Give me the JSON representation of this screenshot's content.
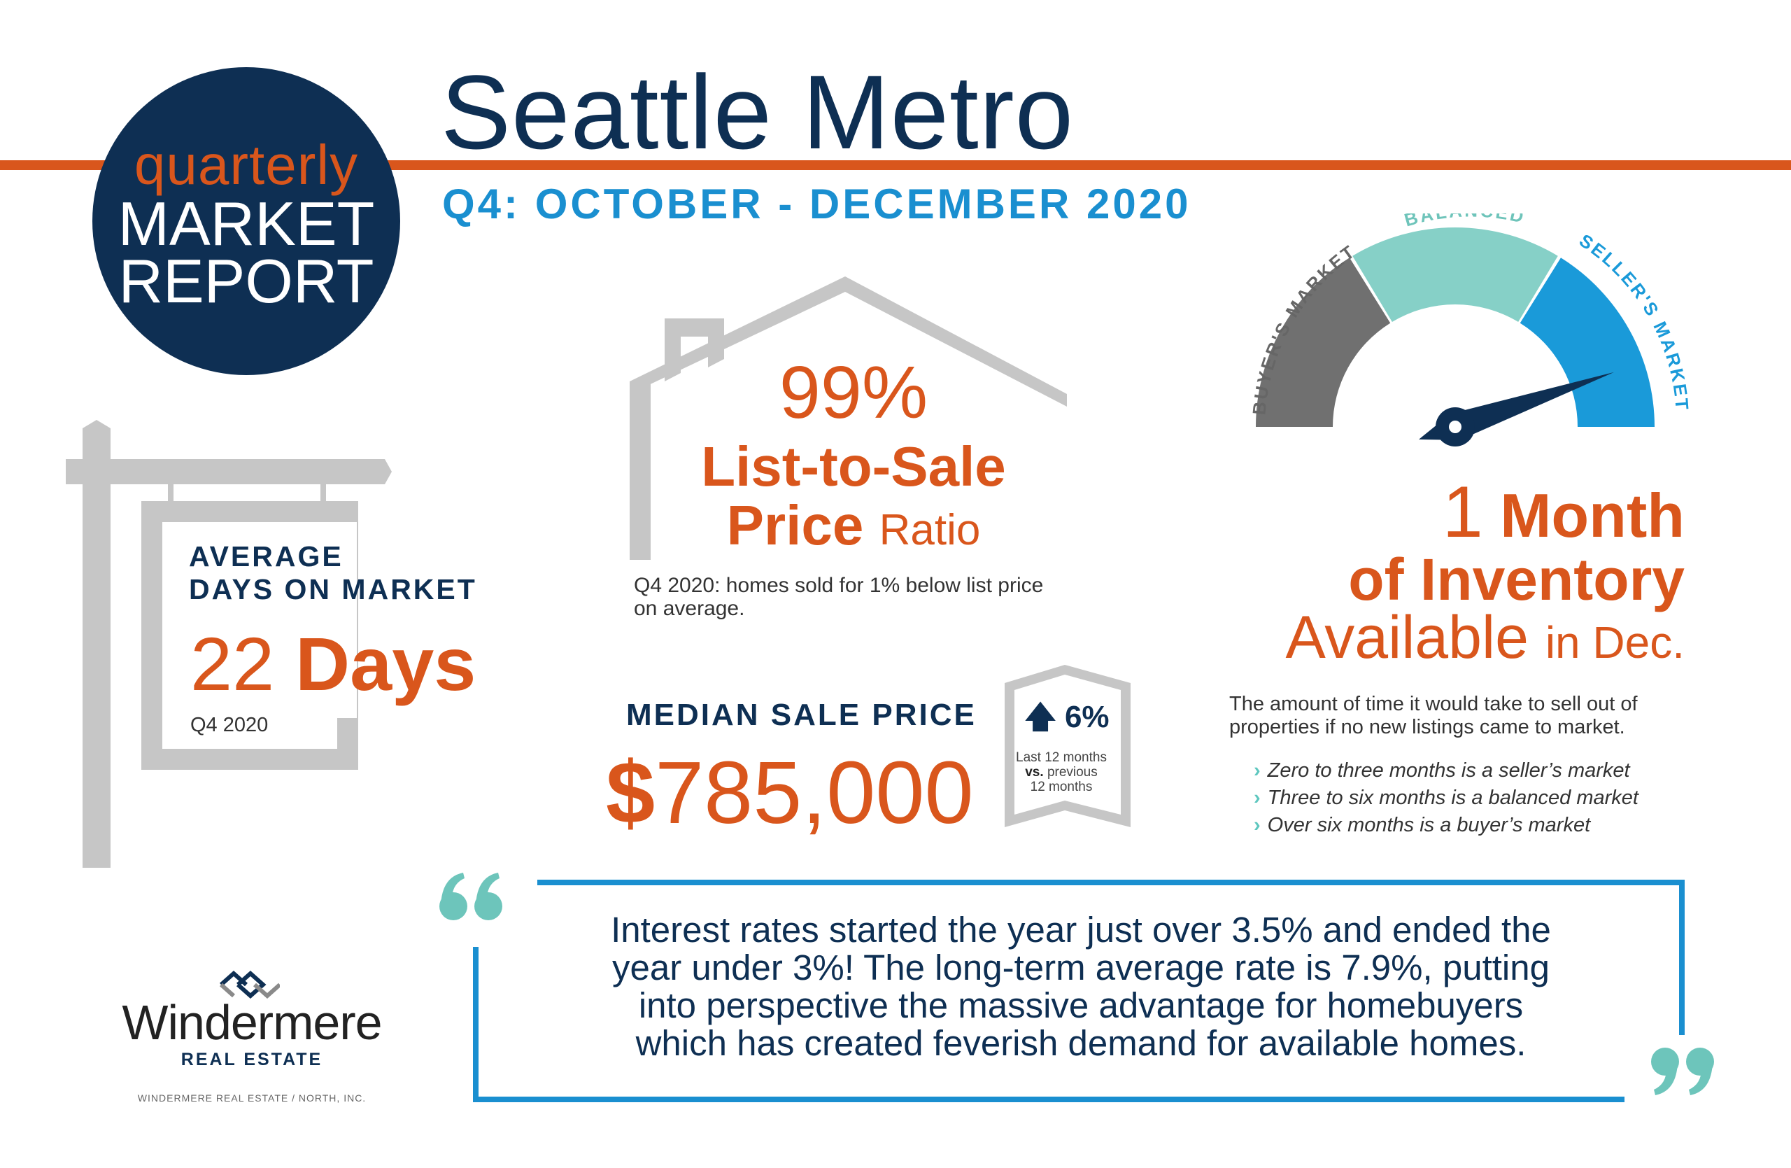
{
  "header": {
    "badge": {
      "line1": "quarterly",
      "line2": "MARKET",
      "line3": "REPORT"
    },
    "title": "Seattle Metro",
    "subtitle": "Q4: OCTOBER - DECEMBER 2020"
  },
  "days_on_market": {
    "heading_line1": "AVERAGE",
    "heading_line2": "DAYS ON MARKET",
    "number": "22",
    "unit": "Days",
    "period": "Q4 2020"
  },
  "list_to_sale": {
    "percent": "99%",
    "line1": "List-to-Sale",
    "line2_bold": "Price",
    "line2_light": "Ratio",
    "note_line1": "Q4 2020: homes sold for 1% below list price",
    "note_line2": "on average."
  },
  "median_sale_price": {
    "label": "MEDIAN SALE PRICE",
    "currency": "$",
    "amount": "785,000",
    "change": "6%",
    "change_direction": "up",
    "note_line1": "Last 12 months",
    "note_line2_bold": "vs.",
    "note_line2": "previous",
    "note_line3": "12 months"
  },
  "gauge": {
    "labels": {
      "buyers": "BUYER'S MARKET",
      "balanced": "BALANCED",
      "sellers": "SELLER'S MARKET"
    },
    "colors": {
      "buyers": "#707070",
      "balanced": "#86d0c7",
      "sellers": "#1a9ad9",
      "needle": "#0e2f53"
    },
    "needle_value_months": 1
  },
  "inventory": {
    "number": "1",
    "unit": "Month",
    "line2": "of Inventory",
    "line3_large": "Available",
    "line3_small": "in Dec.",
    "description_line1": "The amount of time it would take to sell out of",
    "description_line2": "properties if no new listings came to market.",
    "rules": [
      "Zero to three months is a seller’s market",
      "Three to six months is a balanced market",
      "Over six months is a buyer’s market"
    ]
  },
  "quote": {
    "line1": "Interest rates started the year just over 3.5% and ended the",
    "line2": "year under 3%! The long-term average rate is 7.9%, putting",
    "line3": "into perspective the massive advantage for homebuyers",
    "line4": "which has created feverish demand for available homes."
  },
  "footer": {
    "logo_name": "Windermere",
    "logo_sub": "REAL ESTATE",
    "legal": "WINDERMERE REAL ESTATE / NORTH, INC."
  },
  "colors": {
    "orange": "#d9561c",
    "navy": "#0e2f53",
    "blue": "#1a8fd0",
    "teal": "#5ec7bf",
    "gray": "#c6c6c6"
  }
}
